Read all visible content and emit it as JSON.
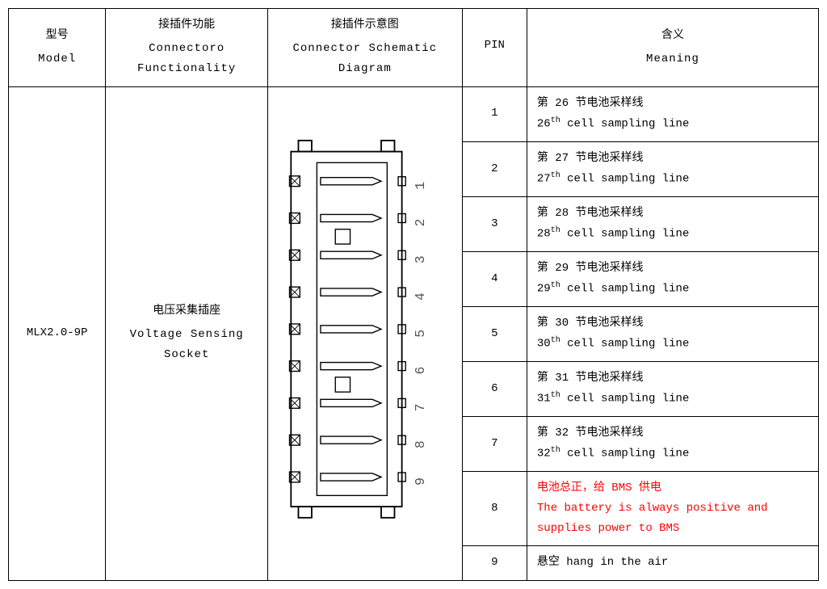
{
  "headers": {
    "model": {
      "cn": "型号",
      "en": "Model"
    },
    "functionality": {
      "cn": "接插件功能",
      "en": "Connectoro Functionality"
    },
    "diagram": {
      "cn": "接插件示意图",
      "en": "Connector Schematic Diagram"
    },
    "pin": {
      "cn": "PIN",
      "en": ""
    },
    "meaning": {
      "cn": "含义",
      "en": "Meaning"
    }
  },
  "model": "MLX2.0-9P",
  "functionality": {
    "cn": "电压采集插座",
    "en": "Voltage Sensing Socket"
  },
  "pins": [
    {
      "num": "1",
      "cn": "第 26 节电池采样线",
      "en_pre": "26",
      "en_sup": "th",
      "en_post": " cell sampling line",
      "highlight": false
    },
    {
      "num": "2",
      "cn": "第 27 节电池采样线",
      "en_pre": "27",
      "en_sup": "th",
      "en_post": " cell sampling line",
      "highlight": false
    },
    {
      "num": "3",
      "cn": "第 28 节电池采样线",
      "en_pre": "28",
      "en_sup": "th",
      "en_post": " cell sampling line",
      "highlight": false
    },
    {
      "num": "4",
      "cn": "第 29 节电池采样线",
      "en_pre": "29",
      "en_sup": "th",
      "en_post": " cell sampling line",
      "highlight": false
    },
    {
      "num": "5",
      "cn": "第 30 节电池采样线",
      "en_pre": "30",
      "en_sup": "th",
      "en_post": " cell sampling line",
      "highlight": false
    },
    {
      "num": "6",
      "cn": "第 31 节电池采样线",
      "en_pre": "31",
      "en_sup": "th",
      "en_post": " cell sampling line",
      "highlight": false
    },
    {
      "num": "7",
      "cn": "第 32 节电池采样线",
      "en_pre": "32",
      "en_sup": "th",
      "en_post": " cell sampling line",
      "highlight": false
    },
    {
      "num": "8",
      "cn": "电池总正，给 BMS 供电",
      "en_full": "The battery is always positive and supplies power to BMS",
      "highlight": true
    },
    {
      "num": "9",
      "cn_en": "悬空 hang in the air",
      "highlight": false
    }
  ],
  "diagram": {
    "pin_count": 9,
    "stroke_color": "#000000",
    "fill_color": "#ffffff",
    "number_fontsize": 18,
    "number_color": "#555555"
  },
  "colors": {
    "border": "#000000",
    "text": "#000000",
    "highlight": "#ff0000",
    "background": "#ffffff"
  }
}
